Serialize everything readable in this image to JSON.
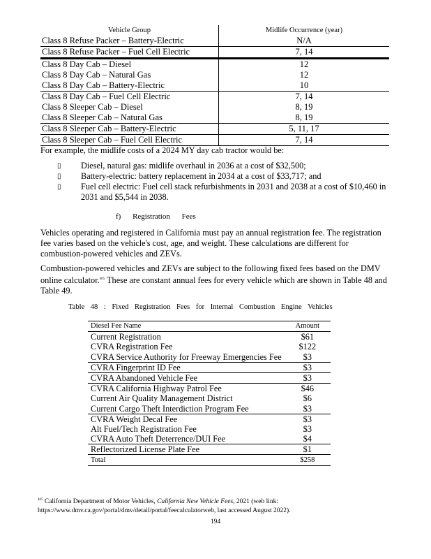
{
  "midlife_table": {
    "headers": [
      "Vehicle Group",
      "Midlife Occurrence (year)"
    ],
    "rows": [
      [
        "Class 8 Refuse Packer – Battery-Electric",
        "N/A"
      ],
      [
        "Class 8 Refuse Packer – Fuel Cell Electric",
        "7, 14"
      ],
      [
        "Class 8 Day Cab – Diesel",
        "12"
      ],
      [
        "Class 8 Day Cab – Natural Gas",
        "12"
      ],
      [
        "Class 8 Day Cab – Battery-Electric",
        "10"
      ],
      [
        "Class 8 Day Cab – Fuel Cell Electric",
        "7, 14"
      ],
      [
        "Class 8 Sleeper Cab – Diesel",
        "8, 19"
      ],
      [
        "Class 8 Sleeper Cab – Natural Gas",
        "8, 19"
      ],
      [
        "Class 8 Sleeper Cab – Battery-Electric",
        "5, 11, 17"
      ],
      [
        "Class 8 Sleeper Cab – Fuel Cell Electric",
        "7, 14"
      ]
    ]
  },
  "example_intro": "For example, the midlife costs of a 2024 MY day cab tractor would be:",
  "bullets": [
    "Diesel, natural gas: midlife overhaul in 2036 at a cost of $32,500;",
    "Battery-electric: battery replacement in 2034 at a cost of $33,717; and",
    "Fuel cell electric: Fuel cell stack refurbishments in 2031 and 2038 at a cost of $10,460 in 2031 and $5,544 in 2038."
  ],
  "bullet_glyph": "▯",
  "section_heading": "f) Registration Fees",
  "paragraph1": "Vehicles operating and registered in California must pay an annual registration fee. The registration fee varies based on the vehicle's cost, age, and weight. These calculations are different for combustion-powered vehicles and ZEVs.",
  "paragraph2_before": "Combustion-powered vehicles and ZEVs are subject to the following fixed fees based on the DMV online calculator.",
  "paragraph2_ref": "405",
  "paragraph2_after": " These are constant annual fees for every vehicle which are shown in Table 48 and Table 49.",
  "fee_table": {
    "caption": "Table 48 : Fixed Registration Fees for Internal Combustion Engine Vehicles",
    "headers": [
      "Diesel Fee Name",
      "Amount"
    ],
    "rows": [
      [
        "Current Registration",
        "$61"
      ],
      [
        "CVRA Registration Fee",
        "$122"
      ],
      [
        "CVRA Service Authority for Freeway Emergencies Fee",
        "$3"
      ],
      [
        "CVRA Fingerprint ID Fee",
        "$3"
      ],
      [
        "CVRA Abandoned Vehicle Fee",
        "$3"
      ],
      [
        "CVRA California Highway Patrol Fee",
        "$46"
      ],
      [
        "Current Air Quality Management District",
        "$6"
      ],
      [
        "Current Cargo Theft Interdiction Program Fee",
        "$3"
      ],
      [
        "CVRA Weight Decal Fee",
        "$3"
      ],
      [
        "Alt Fuel/Tech Registration Fee",
        "$3"
      ],
      [
        "CVRA Auto Theft Deterrence/DUI Fee",
        "$4"
      ],
      [
        "Reflectorized License Plate Fee",
        "$1"
      ]
    ],
    "total_label": "Total",
    "total_value": "$258"
  },
  "footnote": {
    "number": "405",
    "text_before": " California Department of Motor Vehicles, ",
    "title": "California New Vehicle Fees",
    "text_after": ", 2021 (web link: https://www.dmv.ca.gov/portal/dmv/detail/portal/feecalculatorweb, last accessed August 2022)."
  },
  "page_number": "194"
}
